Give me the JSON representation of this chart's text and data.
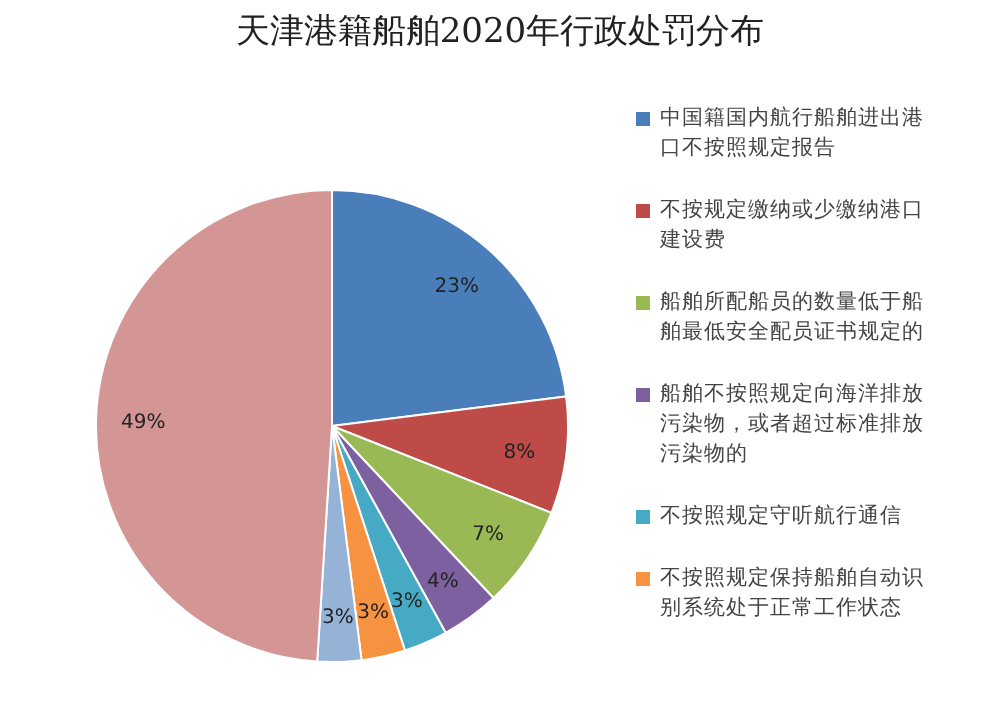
{
  "chart_data": {
    "type": "pie",
    "title": "天津港籍船舶2020年行政处罚分布",
    "categories": [
      "中国籍国内航行船舶进出港口不按照规定报告",
      "不按规定缴纳或少缴纳港口建设费",
      "船舶所配船员的数量低于船舶最低安全配员证书规定的",
      "船舶不按照规定向海洋排放污染物，或者超过标准排放污染物的",
      "不按照规定守听航行通信",
      "不按照规定保持船舶自动识别系统处于正常工作状态",
      null,
      null
    ],
    "values": [
      23,
      8,
      7,
      4,
      3,
      3,
      3,
      49
    ],
    "colors": [
      "#4a7ebb",
      "#be4b48",
      "#98b954",
      "#7d60a0",
      "#46aac5",
      "#f69240",
      "#95b3d7",
      "#d49595"
    ],
    "value_labels": [
      "23%",
      "8%",
      "7%",
      "4%",
      "3%",
      "3%",
      "3%",
      "49%"
    ],
    "legend": "right"
  }
}
